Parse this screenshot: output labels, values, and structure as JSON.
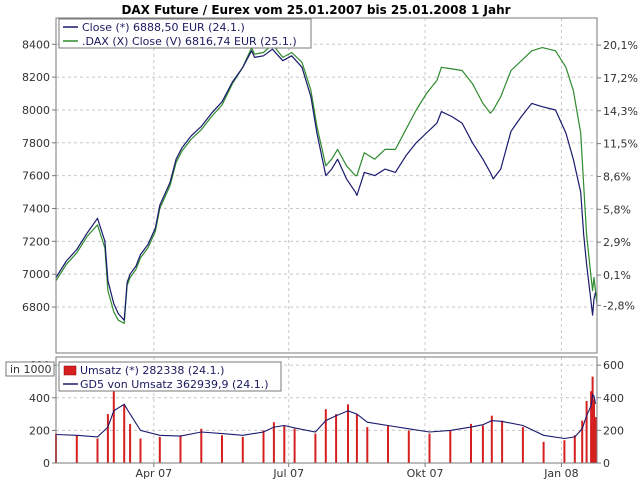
{
  "chart_data": [
    {
      "type": "line",
      "title": "DAX Future / Eurex vom 25.01.2007 bis 25.01.2008 1 Jahr",
      "x_range": [
        "25.01.2007",
        "25.01.2008"
      ],
      "ylim": [
        6520,
        8560
      ],
      "y_ticks": [
        6800,
        7000,
        7200,
        7400,
        7600,
        7800,
        8000,
        8200,
        8400
      ],
      "y_tick_labels": [
        "6800",
        "7000",
        "7200",
        "7400",
        "7600",
        "7800",
        "8000",
        "8200",
        "8400"
      ],
      "right_axis_ticks": [
        {
          "value": 6810,
          "label": "-2,8%"
        },
        {
          "value": 6995,
          "label": "0,1%"
        },
        {
          "value": 7195,
          "label": "2,9%"
        },
        {
          "value": 7395,
          "label": "5,8%"
        },
        {
          "value": 7595,
          "label": "8,6%"
        },
        {
          "value": 7795,
          "label": "11,5%"
        },
        {
          "value": 7995,
          "label": "14,3%"
        },
        {
          "value": 8195,
          "label": "17,2%"
        },
        {
          "value": 8395,
          "label": "20,1%"
        }
      ],
      "grid": true,
      "legend_position": "top-left",
      "series": [
        {
          "name": "Close (*) 6888,50 EUR (24.1.)",
          "color": "#1a1a6e",
          "x": [
            "25.01.2007",
            "01.02.2007",
            "08.02.2007",
            "15.02.2007",
            "22.02.2007",
            "27.02.2007",
            "01.03.2007",
            "05.03.2007",
            "08.03.2007",
            "12.03.2007",
            "14.03.2007",
            "16.03.2007",
            "20.03.2007",
            "23.03.2007",
            "28.03.2007",
            "02.04.2007",
            "05.04.2007",
            "12.04.2007",
            "16.04.2007",
            "20.04.2007",
            "26.04.2007",
            "03.05.2007",
            "10.05.2007",
            "17.05.2007",
            "24.05.2007",
            "31.05.2007",
            "06.06.2007",
            "08.06.2007",
            "14.06.2007",
            "20.06.2007",
            "27.06.2007",
            "03.07.2007",
            "10.07.2007",
            "16.07.2007",
            "20.07.2007",
            "26.07.2007",
            "30.07.2007",
            "03.08.2007",
            "09.08.2007",
            "15.08.2007",
            "16.08.2007",
            "21.08.2007",
            "28.08.2007",
            "04.09.2007",
            "11.09.2007",
            "18.09.2007",
            "25.09.2007",
            "02.10.2007",
            "09.10.2007",
            "12.10.2007",
            "19.10.2007",
            "26.10.2007",
            "02.11.2007",
            "09.11.2007",
            "14.11.2007",
            "16.11.2007",
            "21.11.2007",
            "28.11.2007",
            "05.12.2007",
            "12.12.2007",
            "19.12.2007",
            "28.12.2007",
            "04.01.2008",
            "09.01.2008",
            "14.01.2008",
            "16.01.2008",
            "18.01.2008",
            "21.01.2008",
            "22.01.2008",
            "23.01.2008",
            "24.01.2008"
          ],
          "values": [
            6980,
            7080,
            7150,
            7250,
            7340,
            7200,
            6960,
            6820,
            6760,
            6720,
            6950,
            7000,
            7050,
            7120,
            7180,
            7280,
            7420,
            7560,
            7700,
            7770,
            7840,
            7900,
            7980,
            8050,
            8170,
            8260,
            8360,
            8320,
            8330,
            8370,
            8300,
            8330,
            8260,
            8080,
            7860,
            7600,
            7640,
            7700,
            7580,
            7500,
            7480,
            7620,
            7600,
            7640,
            7620,
            7720,
            7800,
            7860,
            7920,
            7990,
            7960,
            7920,
            7800,
            7700,
            7620,
            7580,
            7640,
            7870,
            7960,
            8040,
            8020,
            8000,
            7860,
            7700,
            7500,
            7240,
            7060,
            6830,
            6750,
            6850,
            6888.5
          ]
        },
        {
          "name": ".DAX (X) Close (V) 6816,74 EUR (25.1.)",
          "color": "#2e8b2e",
          "x": [
            "25.01.2007",
            "01.02.2007",
            "08.02.2007",
            "15.02.2007",
            "22.02.2007",
            "27.02.2007",
            "01.03.2007",
            "05.03.2007",
            "08.03.2007",
            "12.03.2007",
            "14.03.2007",
            "16.03.2007",
            "20.03.2007",
            "23.03.2007",
            "28.03.2007",
            "02.04.2007",
            "05.04.2007",
            "12.04.2007",
            "16.04.2007",
            "20.04.2007",
            "26.04.2007",
            "03.05.2007",
            "10.05.2007",
            "17.05.2007",
            "24.05.2007",
            "31.05.2007",
            "06.06.2007",
            "08.06.2007",
            "14.06.2007",
            "20.06.2007",
            "27.06.2007",
            "03.07.2007",
            "10.07.2007",
            "16.07.2007",
            "20.07.2007",
            "26.07.2007",
            "30.07.2007",
            "03.08.2007",
            "09.08.2007",
            "15.08.2007",
            "16.08.2007",
            "21.08.2007",
            "28.08.2007",
            "04.09.2007",
            "11.09.2007",
            "18.09.2007",
            "25.09.2007",
            "02.10.2007",
            "09.10.2007",
            "12.10.2007",
            "19.10.2007",
            "26.10.2007",
            "02.11.2007",
            "09.11.2007",
            "14.11.2007",
            "16.11.2007",
            "21.11.2007",
            "28.11.2007",
            "05.12.2007",
            "12.12.2007",
            "19.12.2007",
            "28.12.2007",
            "04.01.2008",
            "09.01.2008",
            "14.01.2008",
            "16.01.2008",
            "18.01.2008",
            "21.01.2008",
            "22.01.2008",
            "23.01.2008",
            "25.01.2008"
          ],
          "values": [
            6960,
            7060,
            7130,
            7230,
            7300,
            7160,
            6900,
            6770,
            6720,
            6700,
            6930,
            6980,
            7030,
            7100,
            7160,
            7260,
            7400,
            7540,
            7680,
            7750,
            7820,
            7880,
            7960,
            8030,
            8160,
            8260,
            8380,
            8340,
            8350,
            8400,
            8320,
            8350,
            8290,
            8120,
            7900,
            7660,
            7700,
            7760,
            7660,
            7600,
            7600,
            7740,
            7700,
            7760,
            7760,
            7880,
            8000,
            8100,
            8180,
            8260,
            8250,
            8240,
            8160,
            8040,
            7980,
            8000,
            8080,
            8240,
            8300,
            8360,
            8380,
            8360,
            8260,
            8120,
            7860,
            7540,
            7240,
            6980,
            6900,
            6980,
            6816.74
          ]
        }
      ]
    },
    {
      "type": "bar",
      "unit_label": "in 1000",
      "ylim": [
        0,
        650
      ],
      "y_ticks": [
        0,
        200,
        400,
        600
      ],
      "y_tick_labels": [
        "0",
        "200",
        "400",
        "600"
      ],
      "x_tick_labels": [
        "Apr 07",
        "Jul 07",
        "Okt 07",
        "Jan 08"
      ],
      "x_tick_dates": [
        "01.04.2007",
        "01.07.2007",
        "01.10.2007",
        "01.01.2008"
      ],
      "grid": true,
      "legend_position": "top-left",
      "series": [
        {
          "name": "Umsatz (*) 282338 (24.1.)",
          "type": "bar",
          "color": "#d62020",
          "x": [
            "25.01.2007",
            "08.02.2007",
            "22.02.2007",
            "01.03.2007",
            "05.03.2007",
            "12.03.2007",
            "16.03.2007",
            "23.03.2007",
            "05.04.2007",
            "19.04.2007",
            "03.05.2007",
            "17.05.2007",
            "31.05.2007",
            "14.06.2007",
            "21.06.2007",
            "28.06.2007",
            "05.07.2007",
            "19.07.2007",
            "26.07.2007",
            "02.08.2007",
            "10.08.2007",
            "16.08.2007",
            "23.08.2007",
            "06.09.2007",
            "20.09.2007",
            "04.10.2007",
            "18.10.2007",
            "01.11.2007",
            "09.11.2007",
            "15.11.2007",
            "22.11.2007",
            "06.12.2007",
            "20.12.2007",
            "03.01.2008",
            "10.01.2008",
            "15.01.2008",
            "18.01.2008",
            "21.01.2008",
            "22.01.2008",
            "23.01.2008",
            "24.01.2008"
          ],
          "values": [
            180,
            170,
            150,
            300,
            460,
            360,
            240,
            150,
            160,
            170,
            210,
            170,
            160,
            200,
            250,
            230,
            210,
            180,
            330,
            300,
            360,
            300,
            220,
            230,
            200,
            180,
            200,
            240,
            230,
            290,
            260,
            220,
            130,
            140,
            170,
            260,
            380,
            440,
            530,
            390,
            282.338
          ]
        },
        {
          "name": "GD5 von Umsatz 362939,9 (24.1.)",
          "type": "line",
          "color": "#1a1a6e",
          "x": [
            "25.01.2007",
            "08.02.2007",
            "22.02.2007",
            "01.03.2007",
            "05.03.2007",
            "12.03.2007",
            "16.03.2007",
            "23.03.2007",
            "05.04.2007",
            "19.04.2007",
            "03.05.2007",
            "17.05.2007",
            "31.05.2007",
            "14.06.2007",
            "21.06.2007",
            "28.06.2007",
            "05.07.2007",
            "19.07.2007",
            "26.07.2007",
            "02.08.2007",
            "10.08.2007",
            "16.08.2007",
            "23.08.2007",
            "06.09.2007",
            "20.09.2007",
            "04.10.2007",
            "18.10.2007",
            "01.11.2007",
            "09.11.2007",
            "15.11.2007",
            "22.11.2007",
            "06.12.2007",
            "20.12.2007",
            "03.01.2008",
            "10.01.2008",
            "15.01.2008",
            "18.01.2008",
            "21.01.2008",
            "22.01.2008",
            "23.01.2008",
            "24.01.2008"
          ],
          "values": [
            175,
            170,
            160,
            220,
            320,
            360,
            300,
            200,
            170,
            165,
            190,
            180,
            170,
            190,
            220,
            230,
            215,
            190,
            260,
            290,
            320,
            300,
            250,
            230,
            210,
            190,
            200,
            220,
            235,
            260,
            255,
            230,
            170,
            150,
            160,
            210,
            290,
            350,
            420,
            410,
            362.9399
          ]
        }
      ]
    }
  ]
}
